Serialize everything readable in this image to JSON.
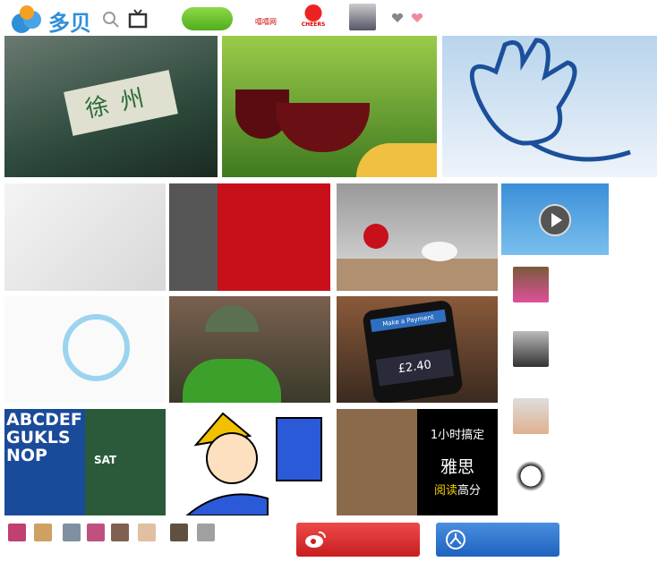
{
  "header": {
    "logo": "多贝",
    "partners": [
      "嘻嘻网",
      "CHEERS"
    ]
  },
  "tiles": {
    "train_sign": "徐州",
    "payment_title": "Make a Payment",
    "payment_amount": "£2.40",
    "book_letters": "ABCDEFGUKLSNOP",
    "book_sat": "SAT",
    "ielts_line1": "1小时搞定",
    "ielts_line2": "雅思",
    "ielts_line3a": "阅读",
    "ielts_line3b": "高分"
  }
}
